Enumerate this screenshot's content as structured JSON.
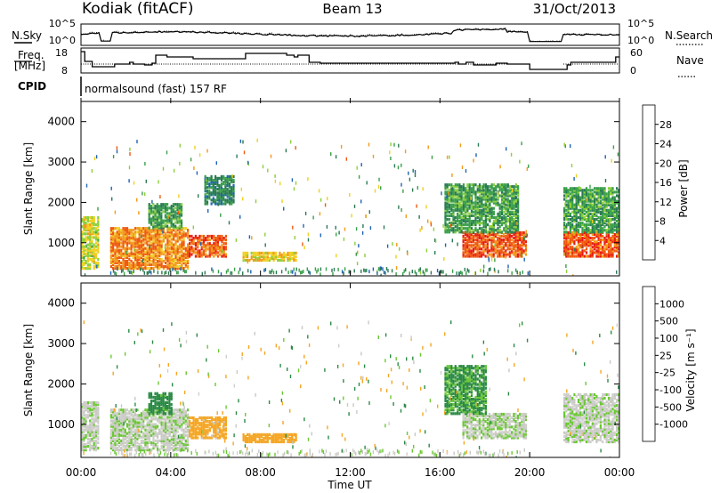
{
  "header": {
    "station": "Kodiak (fitACF)",
    "beam": "Beam 13",
    "date": "31/Oct/2013"
  },
  "colors": {
    "power_scale": [
      "#1c1ce6",
      "#1f64b4",
      "#2b7a55",
      "#3aa04a",
      "#8ccf3a",
      "#f0d020",
      "#f39a18",
      "#ef5a12",
      "#e81c14"
    ],
    "velocity_scale": [
      "#e81c14",
      "#f27a0e",
      "#f5a623",
      "#c8c8c4",
      "#cfcfcb",
      "#6ac832",
      "#2b8a45",
      "#1f5ca8",
      "#1c28c8"
    ]
  },
  "chart_data": [
    {
      "type": "line",
      "panel": "noise",
      "left_label": "N.Sky",
      "right_label": "N.Search",
      "left_ticks": [
        "10^5",
        "10^0"
      ],
      "right_ticks": [
        "10^5",
        "10^0"
      ]
    },
    {
      "type": "line",
      "panel": "frequency",
      "left_label_lines": [
        "Freq.",
        "[MHz]"
      ],
      "right_label": "Nave",
      "left_ticks": [
        18,
        8
      ],
      "right_ticks": [
        60,
        0
      ],
      "x": [
        "00:00",
        "00:10",
        "00:30",
        "01:30",
        "02:10",
        "02:20",
        "02:50",
        "03:10",
        "03:20",
        "03:50",
        "04:20",
        "05:00",
        "07:20",
        "09:10",
        "09:30",
        "09:40",
        "10:10",
        "10:40",
        "16:40",
        "16:50",
        "17:10",
        "17:30",
        "18:30",
        "19:00",
        "20:00",
        "21:40",
        "21:50",
        "23:50"
      ],
      "freq_mhz": [
        18,
        12.5,
        9.5,
        11,
        12,
        11,
        10.5,
        11.5,
        16,
        15,
        15,
        14,
        17,
        16,
        15,
        16,
        12,
        11.5,
        12,
        11,
        12,
        10.5,
        11.5,
        11,
        10.5,
        10.5,
        12,
        15
      ],
      "freq_gaps": [
        [
          20.0,
          21.4
        ]
      ]
    },
    {
      "type": "table",
      "panel": "cpid",
      "label": "CPID",
      "value": "normalsound (fast) 157 RF"
    },
    {
      "type": "heatmap",
      "panel": "power",
      "xlabel": "",
      "ylabel": "Slant Range [km]",
      "xlim": [
        0,
        24
      ],
      "ylim": [
        180,
        4500
      ],
      "yticks": [
        1000,
        2000,
        3000,
        4000
      ],
      "colorbar_label": "Power [dB]",
      "colorbar_ticks": [
        4,
        8,
        12,
        16,
        20,
        24,
        28
      ],
      "data_gaps_hours": [
        [
          0.8,
          1.3
        ],
        [
          20.0,
          21.5
        ]
      ],
      "echo_regions": [
        {
          "t": [
            0.0,
            0.8
          ],
          "range": [
            400,
            1700
          ],
          "power": 18
        },
        {
          "t": [
            1.3,
            4.8
          ],
          "range": [
            400,
            1400
          ],
          "power": 24
        },
        {
          "t": [
            4.8,
            6.5
          ],
          "range": [
            700,
            1200
          ],
          "power": 26
        },
        {
          "t": [
            3.0,
            4.5
          ],
          "range": [
            1400,
            2000
          ],
          "power": 12
        },
        {
          "t": [
            5.5,
            6.8
          ],
          "range": [
            2000,
            2700
          ],
          "power": 10
        },
        {
          "t": [
            7.2,
            9.6
          ],
          "range": [
            600,
            800
          ],
          "power": 20
        },
        {
          "t": [
            17.0,
            19.8
          ],
          "range": [
            700,
            1300
          ],
          "power": 27
        },
        {
          "t": [
            16.2,
            19.5
          ],
          "range": [
            1300,
            2500
          ],
          "power": 12
        },
        {
          "t": [
            21.5,
            24.0
          ],
          "range": [
            700,
            1300
          ],
          "power": 27
        },
        {
          "t": [
            21.5,
            24.0
          ],
          "range": [
            1300,
            2400
          ],
          "power": 12
        }
      ]
    },
    {
      "type": "heatmap",
      "panel": "velocity",
      "xlabel": "Time UT",
      "ylabel": "Slant Range [km]",
      "xlim": [
        0,
        24
      ],
      "ylim": [
        180,
        4500
      ],
      "yticks": [
        1000,
        2000,
        3000,
        4000
      ],
      "xtick_labels": [
        "00:00",
        "04:00",
        "08:00",
        "12:00",
        "16:00",
        "20:00",
        "00:00"
      ],
      "colorbar_label": "Velocity [m s⁻¹]",
      "colorbar_ticks": [
        -1000,
        -500,
        -100,
        -25,
        25,
        100,
        500,
        1000
      ],
      "data_gaps_hours": [
        [
          0.8,
          1.3
        ],
        [
          20.0,
          21.5
        ]
      ],
      "echo_regions": [
        {
          "t": [
            0.0,
            0.8
          ],
          "range": [
            400,
            1600
          ],
          "velocity": -10
        },
        {
          "t": [
            1.3,
            4.8
          ],
          "range": [
            400,
            1400
          ],
          "velocity": 0
        },
        {
          "t": [
            3.0,
            4.0
          ],
          "range": [
            1300,
            1800
          ],
          "velocity": 150
        },
        {
          "t": [
            4.8,
            6.5
          ],
          "range": [
            700,
            1200
          ],
          "velocity": -150
        },
        {
          "t": [
            7.2,
            9.6
          ],
          "range": [
            600,
            800
          ],
          "velocity": -200
        },
        {
          "t": [
            17.0,
            19.8
          ],
          "range": [
            700,
            1300
          ],
          "velocity": 10
        },
        {
          "t": [
            16.2,
            18.0
          ],
          "range": [
            1300,
            2500
          ],
          "velocity": 120
        },
        {
          "t": [
            21.5,
            24.0
          ],
          "range": [
            600,
            1800
          ],
          "velocity": 0
        }
      ]
    }
  ]
}
